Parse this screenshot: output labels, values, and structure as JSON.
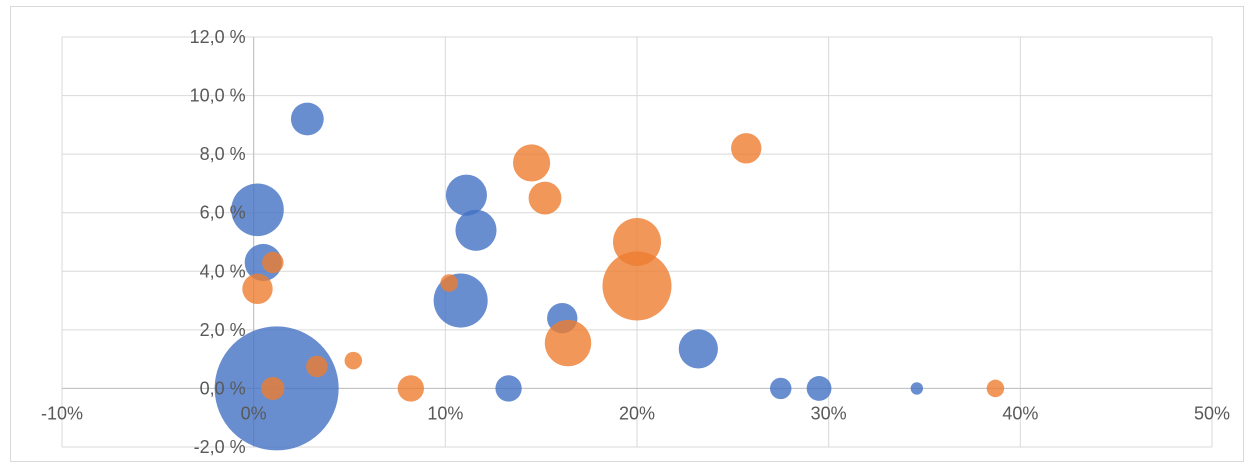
{
  "chart_data": {
    "type": "bubble",
    "title": "",
    "xlabel": "",
    "ylabel": "",
    "xlim": [
      -0.1,
      0.5
    ],
    "ylim": [
      -0.02,
      0.12
    ],
    "x_tick_labels": [
      "-10%",
      "0%",
      "10%",
      "20%",
      "30%",
      "40%",
      "50%"
    ],
    "y_tick_labels": [
      "-2,0 %",
      "0,0 %",
      "2,0 %",
      "4,0 %",
      "6,0 %",
      "8,0 %",
      "10,0 %",
      "12,0 %"
    ],
    "grid": true,
    "legend": "none",
    "series": [
      {
        "color": "#4472c4",
        "points": [
          {
            "x": 0.012,
            "y": 0.0,
            "size": 100
          },
          {
            "x": 0.002,
            "y": 0.061,
            "size": 18
          },
          {
            "x": 0.028,
            "y": 0.092,
            "size": 7
          },
          {
            "x": 0.005,
            "y": 0.043,
            "size": 9
          },
          {
            "x": 0.111,
            "y": 0.066,
            "size": 11
          },
          {
            "x": 0.116,
            "y": 0.054,
            "size": 11
          },
          {
            "x": 0.108,
            "y": 0.03,
            "size": 19
          },
          {
            "x": 0.161,
            "y": 0.024,
            "size": 6
          },
          {
            "x": 0.133,
            "y": 0.0,
            "size": 4.5
          },
          {
            "x": 0.232,
            "y": 0.0135,
            "size": 10
          },
          {
            "x": 0.275,
            "y": 0.0,
            "size": 3
          },
          {
            "x": 0.295,
            "y": 0.0,
            "size": 4
          },
          {
            "x": 0.346,
            "y": 0.0,
            "size": 1
          }
        ]
      },
      {
        "color": "#ed7d31",
        "points": [
          {
            "x": 0.01,
            "y": 0.043,
            "size": 3
          },
          {
            "x": 0.002,
            "y": 0.034,
            "size": 6
          },
          {
            "x": 0.01,
            "y": 0.0,
            "size": 3.5
          },
          {
            "x": 0.033,
            "y": 0.0075,
            "size": 3
          },
          {
            "x": 0.052,
            "y": 0.0095,
            "size": 2
          },
          {
            "x": 0.082,
            "y": 0.0,
            "size": 4.5
          },
          {
            "x": 0.102,
            "y": 0.036,
            "size": 2
          },
          {
            "x": 0.145,
            "y": 0.077,
            "size": 9
          },
          {
            "x": 0.152,
            "y": 0.065,
            "size": 7
          },
          {
            "x": 0.164,
            "y": 0.0155,
            "size": 14
          },
          {
            "x": 0.2,
            "y": 0.05,
            "size": 15
          },
          {
            "x": 0.2,
            "y": 0.035,
            "size": 31
          },
          {
            "x": 0.257,
            "y": 0.082,
            "size": 6
          },
          {
            "x": 0.387,
            "y": 0.0,
            "size": 2
          }
        ]
      }
    ]
  }
}
